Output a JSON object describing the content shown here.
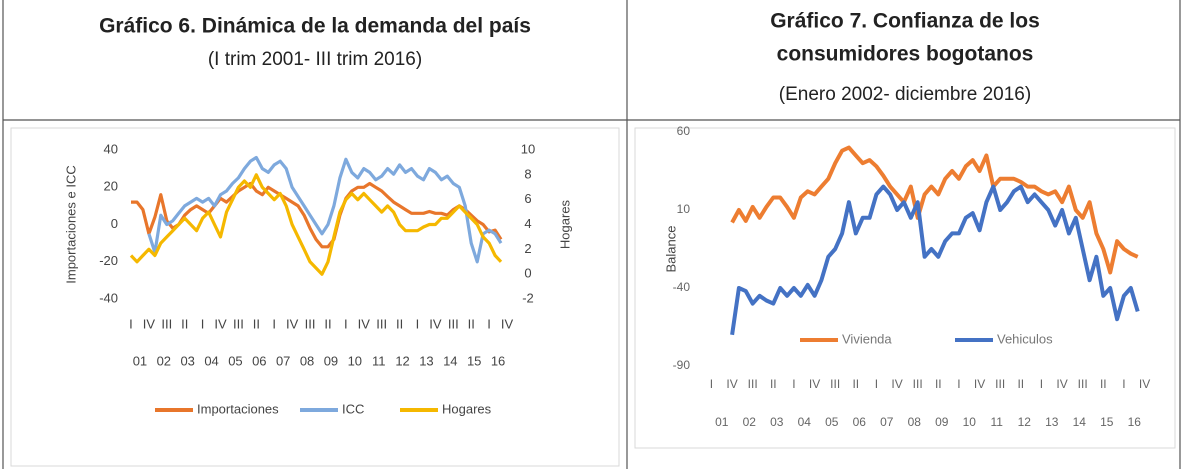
{
  "chart_data": [
    {
      "type": "line",
      "title": [
        "Gráfico 6. Dinámica de la demanda del país"
      ],
      "subtitle": "(I trim 2001- III trim 2016)",
      "ylabel": "Importaciones e ICC",
      "y2label": "Hogares",
      "categories": [
        "I",
        null,
        null,
        "IV",
        null,
        null,
        "III",
        null,
        null,
        "II",
        null,
        null,
        "I",
        null,
        null,
        "IV",
        null,
        null,
        "III",
        null,
        null,
        "II",
        null,
        null,
        "I",
        null,
        null,
        "IV",
        null,
        null,
        "III",
        null,
        null,
        "II",
        null,
        null,
        "I",
        null,
        null,
        "IV",
        null,
        null,
        "III",
        null,
        null,
        "II",
        null,
        null,
        "I",
        null,
        null,
        "IV",
        null,
        null,
        "III",
        null,
        null,
        "II",
        null,
        null,
        "I",
        null,
        null,
        "IV"
      ],
      "years": [
        "01",
        "02",
        "03",
        "04",
        "05",
        "06",
        "07",
        "08",
        "09",
        "10",
        "11",
        "12",
        "13",
        "14",
        "15",
        "16"
      ],
      "ylim": [
        -40,
        40
      ],
      "yticks": [
        -40,
        -20,
        0,
        20,
        40
      ],
      "y2lim": [
        -2,
        10
      ],
      "y2ticks": [
        -2,
        0,
        2,
        4,
        6,
        8,
        10
      ],
      "series": [
        {
          "name": "Importaciones",
          "color": "#e8762b",
          "values": [
            12,
            12,
            8,
            -5,
            4,
            16,
            2,
            -2,
            0,
            5,
            8,
            10,
            8,
            6,
            10,
            14,
            12,
            15,
            18,
            20,
            22,
            18,
            16,
            20,
            18,
            16,
            14,
            12,
            10,
            5,
            -2,
            -8,
            -12,
            -12,
            -8,
            5,
            14,
            18,
            20,
            20,
            22,
            20,
            18,
            15,
            12,
            10,
            8,
            6,
            6,
            6,
            7,
            6,
            6,
            5,
            8,
            10,
            8,
            5,
            2,
            0,
            -4,
            -3,
            -8,
            null
          ]
        },
        {
          "name": "ICC",
          "color": "#7ea9dd",
          "values": [
            null,
            null,
            null,
            -5,
            -15,
            5,
            0,
            2,
            6,
            10,
            12,
            14,
            12,
            14,
            10,
            16,
            18,
            22,
            25,
            30,
            34,
            36,
            30,
            28,
            32,
            34,
            30,
            20,
            15,
            10,
            5,
            0,
            -5,
            0,
            10,
            25,
            35,
            28,
            25,
            30,
            28,
            24,
            26,
            30,
            27,
            32,
            28,
            30,
            26,
            24,
            30,
            28,
            24,
            26,
            22,
            20,
            10,
            -10,
            -20,
            -5,
            -3,
            -5,
            -10,
            null
          ]
        },
        {
          "name": "Hogares",
          "color": "#f5b800",
          "axis": "y2",
          "values": [
            1.5,
            1,
            1.5,
            2,
            1.5,
            2.5,
            3,
            3.5,
            4,
            4.5,
            4,
            3.5,
            4.5,
            5,
            4,
            3,
            5,
            6,
            7,
            7.5,
            7,
            8,
            7,
            6.5,
            6,
            6.5,
            5.5,
            4,
            3,
            2,
            1,
            0.5,
            0,
            1,
            3,
            5,
            6,
            6.5,
            6,
            6.5,
            6,
            5.5,
            5,
            5.5,
            5,
            4,
            3.5,
            3.5,
            3.5,
            3.8,
            4,
            4,
            4.5,
            4.5,
            5,
            5.5,
            5,
            4.5,
            4,
            3,
            2.5,
            1.5,
            1,
            null
          ]
        }
      ]
    },
    {
      "type": "line",
      "title": [
        "Gráfico 7. Confianza de los",
        "consumidores bogotanos"
      ],
      "subtitle": "(Enero 2002- diciembre 2016)",
      "ylabel": "Balance",
      "categories": [
        "I",
        null,
        null,
        "IV",
        null,
        null,
        "III",
        null,
        null,
        "II",
        null,
        null,
        "I",
        null,
        null,
        "IV",
        null,
        null,
        "III",
        null,
        null,
        "II",
        null,
        null,
        "I",
        null,
        null,
        "IV",
        null,
        null,
        "III",
        null,
        null,
        "II",
        null,
        null,
        "I",
        null,
        null,
        "IV",
        null,
        null,
        "III",
        null,
        null,
        "II",
        null,
        null,
        "I",
        null,
        null,
        "IV",
        null,
        null,
        "III",
        null,
        null,
        "II",
        null,
        null,
        "I",
        null,
        null,
        "IV"
      ],
      "years": [
        "01",
        "02",
        "03",
        "04",
        "05",
        "06",
        "07",
        "08",
        "09",
        "10",
        "11",
        "12",
        "13",
        "14",
        "15",
        "16"
      ],
      "ylim": [
        -90,
        60
      ],
      "yticks": [
        -90,
        -40,
        10,
        60
      ],
      "series": [
        {
          "name": "Vivienda",
          "color": "#ed7d31",
          "values": [
            null,
            null,
            null,
            2,
            10,
            3,
            12,
            5,
            12,
            18,
            18,
            12,
            5,
            18,
            22,
            20,
            25,
            30,
            40,
            48,
            50,
            45,
            40,
            42,
            38,
            32,
            25,
            20,
            15,
            25,
            5,
            20,
            25,
            20,
            30,
            35,
            30,
            38,
            42,
            35,
            45,
            25,
            30,
            30,
            30,
            28,
            25,
            25,
            22,
            20,
            22,
            15,
            25,
            10,
            5,
            15,
            -5,
            -15,
            -30,
            -10,
            -15,
            -18,
            -20,
            null
          ]
        },
        {
          "name": "Vehiculos",
          "color": "#4472c4",
          "values": [
            null,
            null,
            null,
            -70,
            -40,
            -42,
            -50,
            -45,
            -48,
            -50,
            -40,
            -45,
            -40,
            -45,
            -38,
            -45,
            -35,
            -20,
            -15,
            -5,
            15,
            -5,
            5,
            5,
            20,
            25,
            20,
            10,
            15,
            5,
            15,
            -20,
            -15,
            -20,
            -10,
            -5,
            -5,
            5,
            8,
            -3,
            15,
            25,
            10,
            15,
            22,
            25,
            15,
            20,
            15,
            10,
            0,
            10,
            -5,
            5,
            -15,
            -35,
            -20,
            -45,
            -40,
            -60,
            -45,
            -40,
            -55,
            null
          ]
        }
      ]
    }
  ]
}
